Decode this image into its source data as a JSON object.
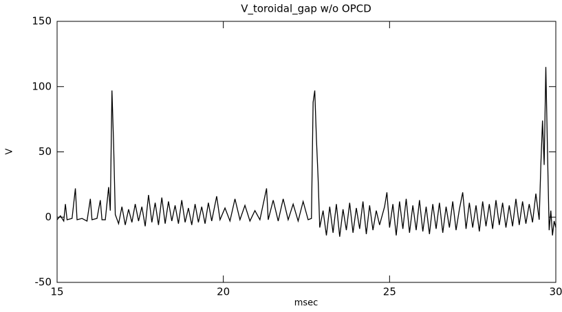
{
  "chart_data": {
    "type": "line",
    "title": "V_toroidal_gap w/o OPCD",
    "x_label": "msec",
    "y_label": "V",
    "xlim": [
      15,
      30
    ],
    "ylim": [
      -50,
      150
    ],
    "xticks": [
      15,
      20,
      25,
      30
    ],
    "yticks": [
      -50,
      0,
      50,
      100,
      150
    ],
    "series": [
      {
        "name": "V_toroidal_gap",
        "color": "#000000",
        "x": [
          15.0,
          15.1,
          15.2,
          15.25,
          15.3,
          15.45,
          15.55,
          15.6,
          15.75,
          15.9,
          16.0,
          16.05,
          16.2,
          16.3,
          16.35,
          16.45,
          16.55,
          16.6,
          16.65,
          16.7,
          16.75,
          16.85,
          16.95,
          17.05,
          17.15,
          17.25,
          17.35,
          17.45,
          17.55,
          17.65,
          17.75,
          17.85,
          17.95,
          18.05,
          18.15,
          18.25,
          18.35,
          18.45,
          18.55,
          18.65,
          18.75,
          18.85,
          18.95,
          19.05,
          19.15,
          19.25,
          19.35,
          19.45,
          19.55,
          19.65,
          19.8,
          19.9,
          20.05,
          20.2,
          20.35,
          20.5,
          20.65,
          20.8,
          20.95,
          21.1,
          21.3,
          21.35,
          21.5,
          21.65,
          21.8,
          21.95,
          22.1,
          22.25,
          22.4,
          22.55,
          22.65,
          22.7,
          22.75,
          22.8,
          22.85,
          22.9,
          23.0,
          23.1,
          23.2,
          23.3,
          23.4,
          23.5,
          23.6,
          23.7,
          23.8,
          23.9,
          24.0,
          24.1,
          24.2,
          24.3,
          24.4,
          24.5,
          24.6,
          24.7,
          24.85,
          24.92,
          25.0,
          25.1,
          25.2,
          25.3,
          25.4,
          25.5,
          25.6,
          25.7,
          25.8,
          25.9,
          26.0,
          26.1,
          26.2,
          26.3,
          26.4,
          26.5,
          26.6,
          26.7,
          26.8,
          26.9,
          27.0,
          27.1,
          27.2,
          27.3,
          27.4,
          27.5,
          27.6,
          27.7,
          27.8,
          27.9,
          28.0,
          28.1,
          28.2,
          28.3,
          28.4,
          28.5,
          28.6,
          28.7,
          28.8,
          28.9,
          29.0,
          29.1,
          29.2,
          29.3,
          29.4,
          29.5,
          29.55,
          29.6,
          29.65,
          29.7,
          29.75,
          29.8,
          29.85,
          29.9,
          29.95,
          30.0
        ],
        "values": [
          -2,
          1,
          -3,
          10,
          -2,
          -1,
          22,
          -2,
          -1,
          -3,
          14,
          -2,
          -1,
          13,
          -2,
          -2,
          23,
          5,
          97,
          56,
          2,
          -5,
          8,
          -6,
          6,
          -4,
          10,
          -3,
          8,
          -7,
          17,
          -4,
          11,
          -6,
          15,
          -5,
          12,
          -3,
          9,
          -5,
          13,
          -4,
          7,
          -6,
          10,
          -4,
          8,
          -5,
          11,
          -3,
          16,
          -2,
          7,
          -3,
          14,
          -2,
          9,
          -3,
          5,
          -2,
          22,
          -2,
          13,
          -3,
          14,
          -2,
          10,
          -3,
          12,
          -2,
          -1,
          88,
          97,
          60,
          30,
          -8,
          5,
          -14,
          8,
          -12,
          10,
          -15,
          6,
          -10,
          11,
          -12,
          7,
          -9,
          12,
          -13,
          9,
          -10,
          5,
          -6,
          8,
          19,
          -8,
          10,
          -14,
          12,
          -9,
          14,
          -12,
          9,
          -10,
          13,
          -11,
          8,
          -13,
          10,
          -9,
          11,
          -12,
          8,
          -8,
          12,
          -10,
          6,
          19,
          -9,
          11,
          -8,
          9,
          -11,
          12,
          -7,
          10,
          -9,
          13,
          -6,
          11,
          -8,
          9,
          -7,
          14,
          -6,
          12,
          -5,
          10,
          -4,
          18,
          -2,
          40,
          74,
          40,
          115,
          50,
          -10,
          5,
          -14,
          -3,
          -8
        ]
      }
    ]
  }
}
